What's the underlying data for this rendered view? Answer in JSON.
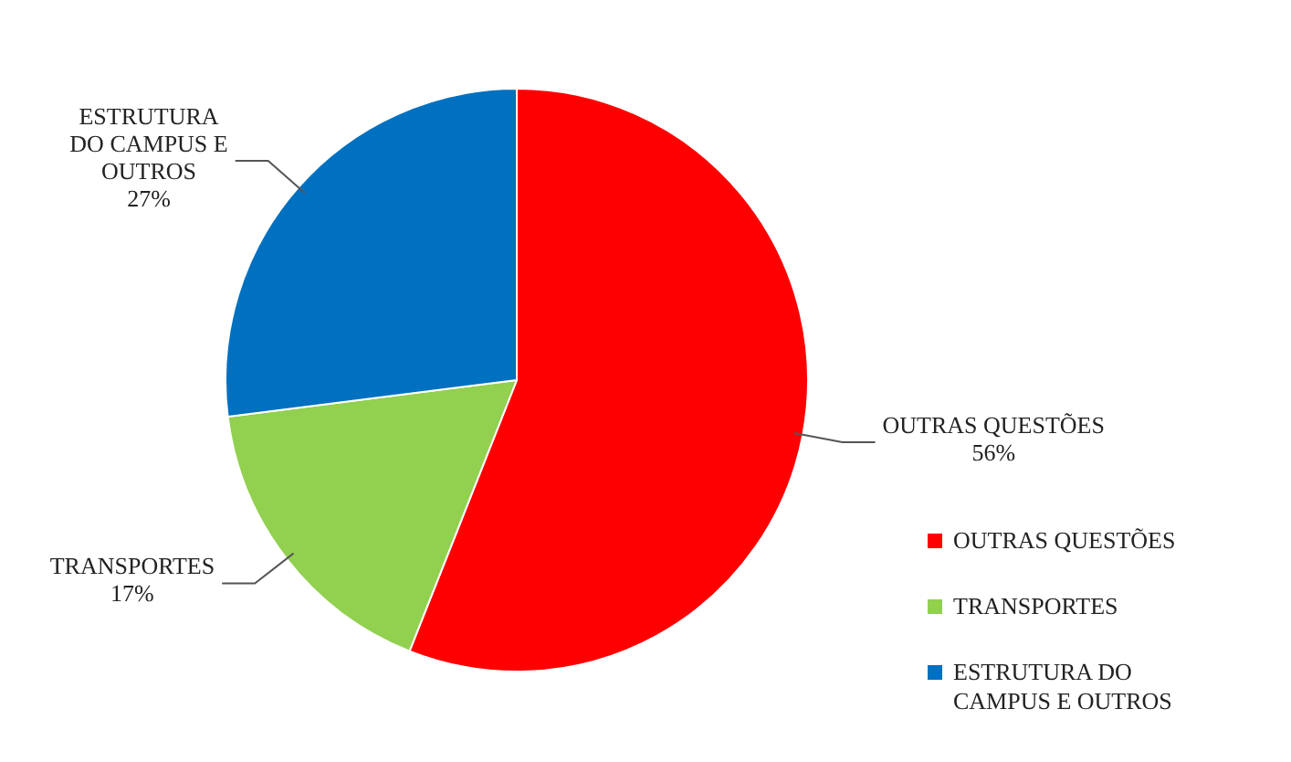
{
  "chart_data": {
    "type": "pie",
    "categories": [
      "OUTRAS QUESTÕES",
      "TRANSPORTES",
      "ESTRUTURA DO CAMPUS E OUTROS"
    ],
    "values": [
      56,
      17,
      27
    ],
    "value_labels": [
      "56%",
      "17%",
      "27%"
    ],
    "colors": [
      "#ff0000",
      "#92d050",
      "#0070c0"
    ],
    "legend": "bottom right"
  }
}
